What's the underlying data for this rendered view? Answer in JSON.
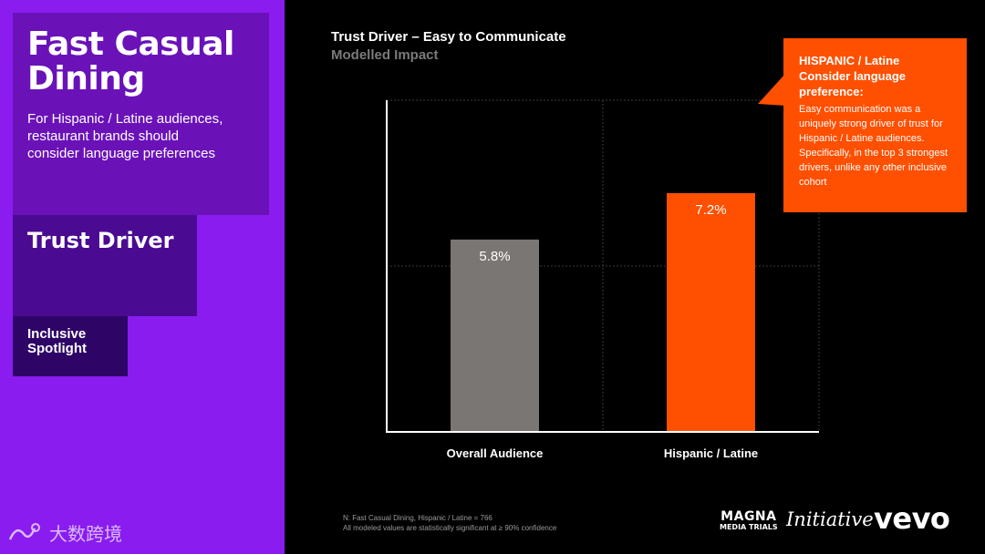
{
  "left_panel": {
    "title": "Fast Casual Dining",
    "description": "For Hispanic / Latine audiences, restaurant brands should consider language preferences",
    "section": "Trust Driver",
    "tag_line1": "Inclusive",
    "tag_line2": "Spotlight"
  },
  "chart_data": {
    "type": "bar",
    "title": "Trust Driver – Easy to Communicate",
    "subtitle": "Modelled Impact",
    "categories": [
      "Overall Audience",
      "Hispanic / Latine"
    ],
    "values": [
      5.8,
      7.2
    ],
    "value_labels": [
      "5.8%",
      "7.2%"
    ],
    "colors": [
      "#7a7673",
      "#ff4f00"
    ],
    "ylim": [
      0,
      10
    ],
    "grid": true,
    "xlabel": "",
    "ylabel": ""
  },
  "callout": {
    "head_line1": "HISPANIC / Latine",
    "head_line2": "Consider language",
    "head_line3": "preference:",
    "body": "Easy communication was a uniquely strong driver of trust for Hispanic / Latine audiences. Specifically, in the top 3 strongest drivers, unlike any other inclusive cohort",
    "color": "#ff4f00"
  },
  "footnote": {
    "line1": "N: Fast Casual Dining, Hispanic / Latine = 766",
    "line2": "All modeled values are statistically significant at ≥ 90% confidence"
  },
  "logos": {
    "magna_top": "MAGNA",
    "magna_bottom": "MEDIA TRIALS",
    "initiative": "Initiative",
    "vevo": "vevo"
  },
  "watermark": {
    "text": "大数跨境"
  }
}
